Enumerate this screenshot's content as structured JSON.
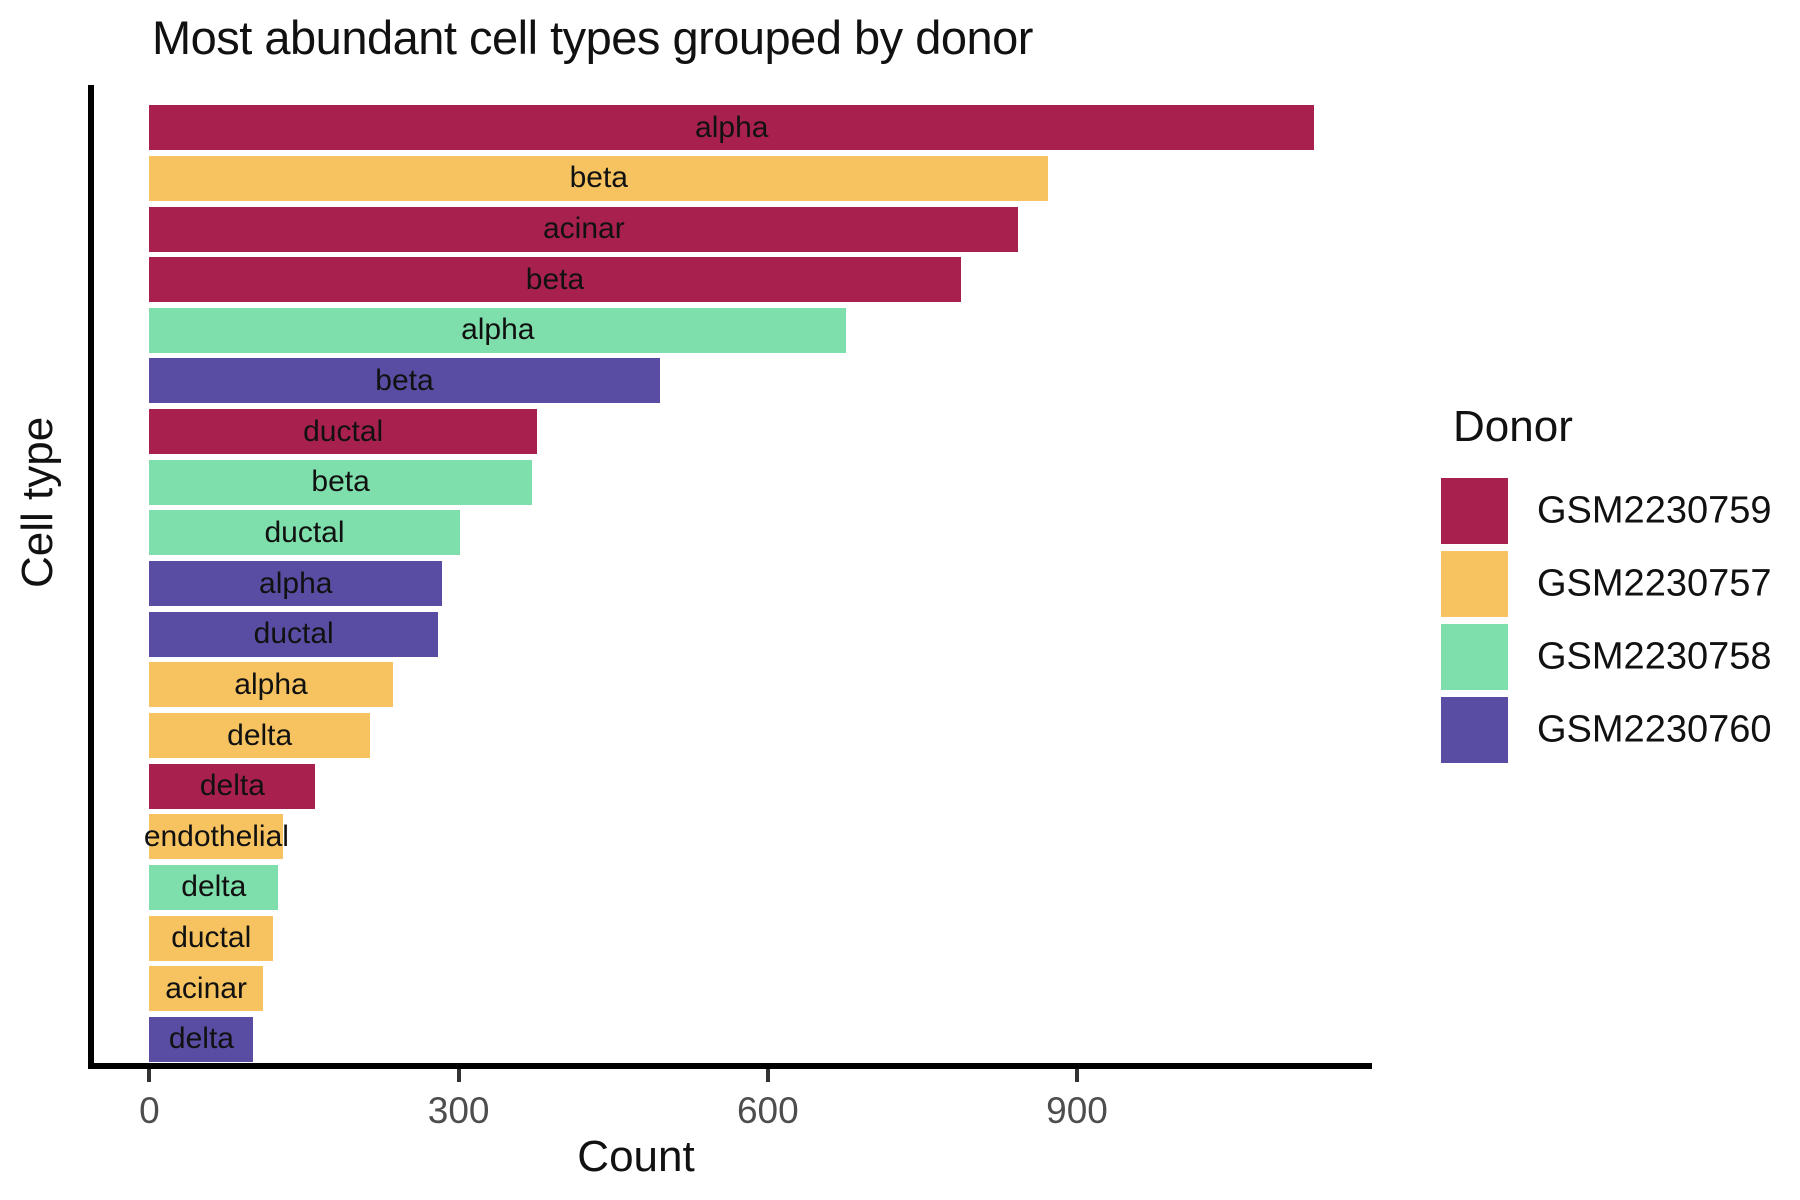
{
  "title": "Most abundant cell types grouped by donor",
  "x_axis": {
    "label": "Count",
    "tick_labels": [
      "0",
      "300",
      "600",
      "900"
    ],
    "tick_values": [
      0,
      300,
      600,
      900
    ]
  },
  "y_axis": {
    "label": "Cell type"
  },
  "legend": {
    "title": "Donor",
    "items": [
      {
        "label": "GSM2230759",
        "color": "#A8204E"
      },
      {
        "label": "GSM2230757",
        "color": "#F6C360"
      },
      {
        "label": "GSM2230758",
        "color": "#7EDFAC"
      },
      {
        "label": "GSM2230760",
        "color": "#584DA2"
      }
    ]
  },
  "chart_data": {
    "type": "bar",
    "orientation": "horizontal",
    "title": "Most abundant cell types grouped by donor",
    "xlabel": "Count",
    "ylabel": "Cell type",
    "xlim": [
      0,
      1185
    ],
    "grid": false,
    "legend_position": "right",
    "legend_title": "Donor",
    "donor_colors": {
      "GSM2230759": "#A8204E",
      "GSM2230757": "#F6C360",
      "GSM2230758": "#7EDFAC",
      "GSM2230760": "#584DA2"
    },
    "bars": [
      {
        "cell_type": "alpha",
        "donor": "GSM2230759",
        "count": 1130
      },
      {
        "cell_type": "beta",
        "donor": "GSM2230757",
        "count": 872
      },
      {
        "cell_type": "acinar",
        "donor": "GSM2230759",
        "count": 843
      },
      {
        "cell_type": "beta",
        "donor": "GSM2230759",
        "count": 787
      },
      {
        "cell_type": "alpha",
        "donor": "GSM2230758",
        "count": 676
      },
      {
        "cell_type": "beta",
        "donor": "GSM2230760",
        "count": 495
      },
      {
        "cell_type": "ductal",
        "donor": "GSM2230759",
        "count": 376
      },
      {
        "cell_type": "beta",
        "donor": "GSM2230758",
        "count": 371
      },
      {
        "cell_type": "ductal",
        "donor": "GSM2230758",
        "count": 301
      },
      {
        "cell_type": "alpha",
        "donor": "GSM2230760",
        "count": 284
      },
      {
        "cell_type": "ductal",
        "donor": "GSM2230760",
        "count": 280
      },
      {
        "cell_type": "alpha",
        "donor": "GSM2230757",
        "count": 236
      },
      {
        "cell_type": "delta",
        "donor": "GSM2230757",
        "count": 214
      },
      {
        "cell_type": "delta",
        "donor": "GSM2230759",
        "count": 161
      },
      {
        "cell_type": "endothelial",
        "donor": "GSM2230757",
        "count": 130
      },
      {
        "cell_type": "delta",
        "donor": "GSM2230758",
        "count": 125
      },
      {
        "cell_type": "ductal",
        "donor": "GSM2230757",
        "count": 120
      },
      {
        "cell_type": "acinar",
        "donor": "GSM2230757",
        "count": 110
      },
      {
        "cell_type": "delta",
        "donor": "GSM2230760",
        "count": 101
      }
    ]
  }
}
